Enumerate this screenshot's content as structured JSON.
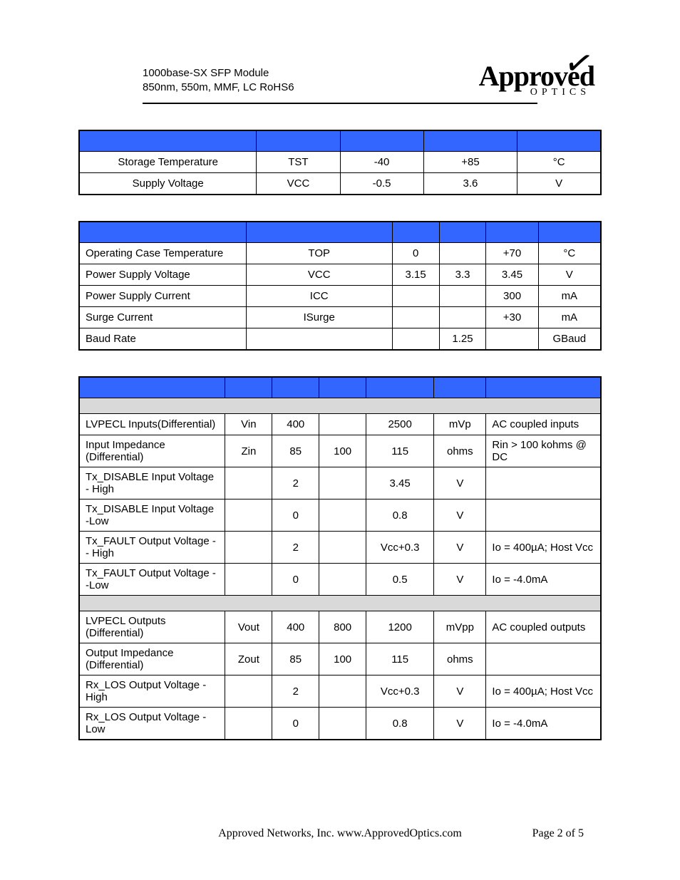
{
  "header": {
    "line1": "1000base-SX SFP Module",
    "line2": "850nm, 550m, MMF, LC RoHS6",
    "logo_top": "Approved",
    "logo_bottom": "OPTICS"
  },
  "table1": {
    "col_widths": [
      "34%",
      "16%",
      "16%",
      "18%",
      "16%"
    ],
    "rows": [
      [
        "Storage Temperature",
        "TST",
        "-40",
        "+85",
        "°C"
      ],
      [
        "Supply Voltage",
        "VCC",
        "-0.5",
        "3.6",
        "V"
      ]
    ]
  },
  "table2": {
    "col_widths": [
      "32%",
      "28%",
      "9%",
      "9%",
      "10%",
      "12%"
    ],
    "rows": [
      [
        "Operating Case Temperature",
        "TOP",
        "0",
        "",
        "+70",
        "°C"
      ],
      [
        "Power Supply Voltage",
        "VCC",
        "3.15",
        "3.3",
        "3.45",
        "V"
      ],
      [
        "Power Supply Current",
        "ICC",
        "",
        "",
        "300",
        "mA"
      ],
      [
        "Surge Current",
        "ISurge",
        "",
        "",
        "+30",
        "mA"
      ],
      [
        "Baud Rate",
        "",
        "",
        "1.25",
        "",
        "GBaud"
      ]
    ]
  },
  "table3": {
    "col_widths": [
      "28%",
      "9%",
      "9%",
      "9%",
      "13%",
      "10%",
      "22%"
    ],
    "section1": "",
    "rows1": [
      [
        "LVPECL Inputs(Differential)",
        "Vin",
        "400",
        "",
        "2500",
        "mVp",
        "AC coupled inputs"
      ],
      [
        "Input Impedance (Differential)",
        "Zin",
        "85",
        "100",
        "115",
        "ohms",
        "Rin > 100 kohms @ DC"
      ],
      [
        "Tx_DISABLE Input Voltage - High",
        "",
        "2",
        "",
        "3.45",
        "V",
        ""
      ],
      [
        "Tx_DISABLE Input Voltage -Low",
        "",
        "0",
        "",
        "0.8",
        "V",
        ""
      ],
      [
        "Tx_FAULT Output Voltage -- High",
        "",
        "2",
        "",
        "Vcc+0.3",
        "V",
        "Io = 400µA; Host Vcc"
      ],
      [
        "Tx_FAULT Output Voltage --Low",
        "",
        "0",
        "",
        "0.5",
        "V",
        "Io = -4.0mA"
      ]
    ],
    "section2": "",
    "rows2": [
      [
        "LVPECL Outputs (Differential)",
        "Vout",
        "400",
        "800",
        "1200",
        "mVpp",
        "AC coupled outputs"
      ],
      [
        "Output Impedance (Differential)",
        "Zout",
        "85",
        "100",
        "115",
        "ohms",
        ""
      ],
      [
        "Rx_LOS Output Voltage - High",
        "",
        "2",
        "",
        "Vcc+0.3",
        "V",
        "Io = 400µA; Host Vcc"
      ],
      [
        "Rx_LOS Output Voltage -Low",
        "",
        "0",
        "",
        "0.8",
        "V",
        "Io = -4.0mA"
      ]
    ]
  },
  "footer": {
    "company": "Approved Networks, Inc.  www.ApprovedOptics.com",
    "page": "Page 2 of 5"
  }
}
